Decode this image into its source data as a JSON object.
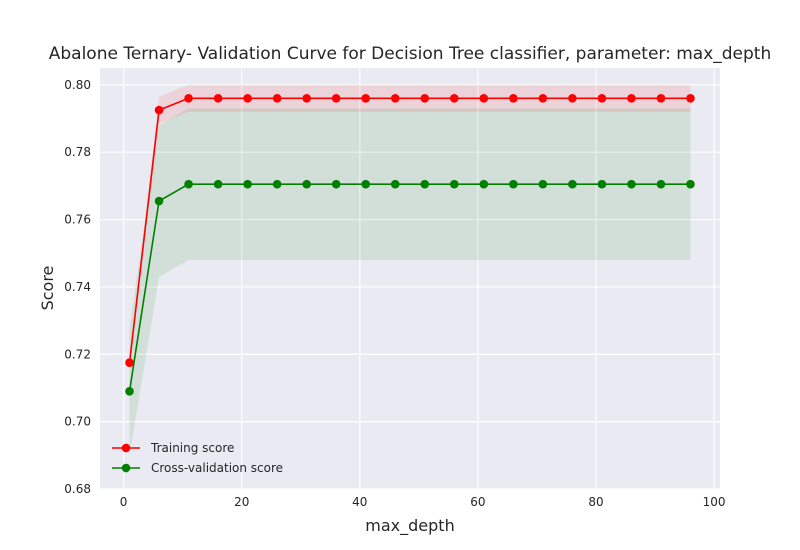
{
  "chart_data": {
    "type": "line",
    "title": "Abalone Ternary- Validation Curve for Decision Tree classifier, parameter: max_depth",
    "xlabel": "max_depth",
    "ylabel": "Score",
    "xlim": [
      -4,
      101
    ],
    "ylim": [
      0.68,
      0.805
    ],
    "xticks": [
      0,
      20,
      40,
      60,
      80,
      100
    ],
    "yticks": [
      0.68,
      0.7,
      0.72,
      0.74,
      0.76,
      0.78,
      0.8
    ],
    "ytick_labels": [
      "0.68",
      "0.70",
      "0.72",
      "0.74",
      "0.76",
      "0.78",
      "0.80"
    ],
    "grid": true,
    "legend_position": "lower-left",
    "x": [
      1,
      6,
      11,
      16,
      21,
      26,
      31,
      36,
      41,
      46,
      51,
      56,
      61,
      66,
      71,
      76,
      81,
      86,
      91,
      96
    ],
    "series": [
      {
        "name": "Training score",
        "color": "#ff0000",
        "values": [
          0.7175,
          0.7925,
          0.796,
          0.796,
          0.796,
          0.796,
          0.796,
          0.796,
          0.796,
          0.796,
          0.796,
          0.796,
          0.796,
          0.796,
          0.796,
          0.796,
          0.796,
          0.796,
          0.796,
          0.796
        ],
        "band_lower": [
          0.7165,
          0.7885,
          0.792,
          0.792,
          0.792,
          0.792,
          0.792,
          0.792,
          0.792,
          0.792,
          0.792,
          0.792,
          0.792,
          0.792,
          0.792,
          0.792,
          0.792,
          0.792,
          0.792,
          0.792
        ],
        "band_upper": [
          0.7185,
          0.7965,
          0.8,
          0.8,
          0.8,
          0.8,
          0.8,
          0.8,
          0.8,
          0.8,
          0.8,
          0.8,
          0.8,
          0.8,
          0.8,
          0.8,
          0.8,
          0.8,
          0.8,
          0.8
        ]
      },
      {
        "name": "Cross-validation score",
        "color": "#008000",
        "values": [
          0.709,
          0.7655,
          0.7705,
          0.7705,
          0.7705,
          0.7705,
          0.7705,
          0.7705,
          0.7705,
          0.7705,
          0.7705,
          0.7705,
          0.7705,
          0.7705,
          0.7705,
          0.7705,
          0.7705,
          0.7705,
          0.7705,
          0.7705
        ],
        "band_lower": [
          0.69,
          0.743,
          0.748,
          0.748,
          0.748,
          0.748,
          0.748,
          0.748,
          0.748,
          0.748,
          0.748,
          0.748,
          0.748,
          0.748,
          0.748,
          0.748,
          0.748,
          0.748,
          0.748,
          0.748
        ],
        "band_upper": [
          0.728,
          0.788,
          0.793,
          0.793,
          0.793,
          0.793,
          0.793,
          0.793,
          0.793,
          0.793,
          0.793,
          0.793,
          0.793,
          0.793,
          0.793,
          0.793,
          0.793,
          0.793,
          0.793,
          0.793
        ]
      }
    ]
  }
}
